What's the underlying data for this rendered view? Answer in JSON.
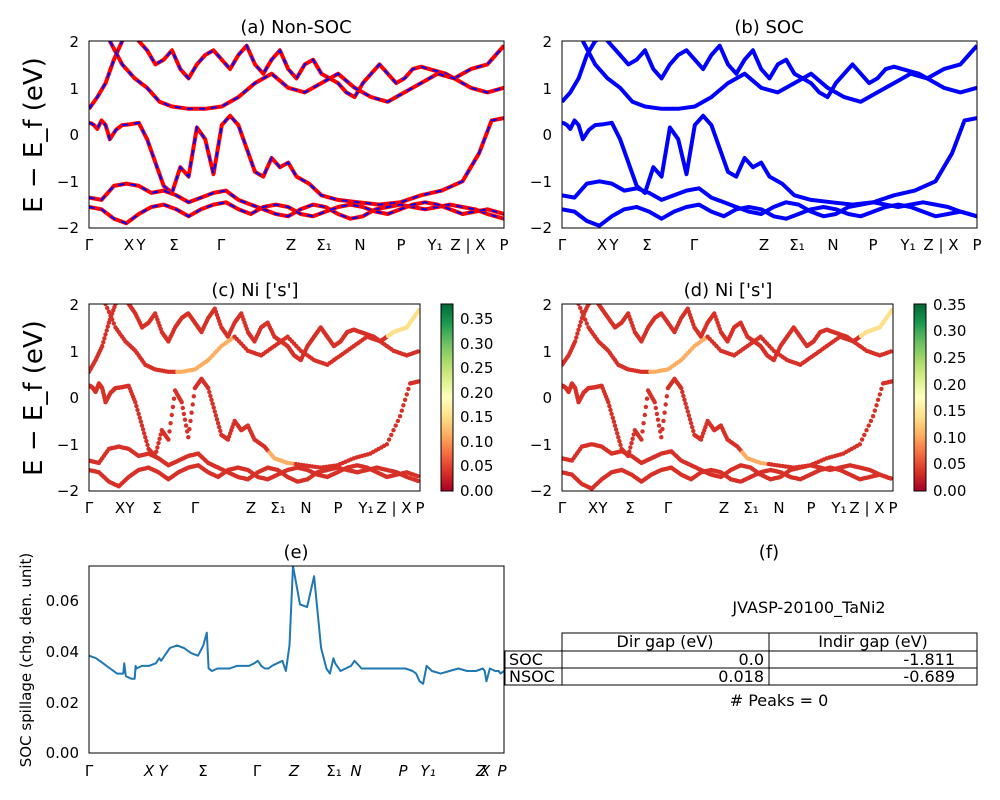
{
  "figure_id": "JVASP-20100_TaNi2",
  "colors": {
    "nonsoc_line": "#ff0000",
    "nonsoc_dash": "#0000ff",
    "soc_line": "#0000ff",
    "spillage_line": "#1f77b4"
  },
  "chart_data": [
    {
      "id": "a",
      "type": "line",
      "title": "(a) Non-SOC",
      "ylabel": "E − E_f (eV)",
      "ylim": [
        -2,
        2
      ],
      "yticks": [
        "2",
        "1",
        "0",
        "−1",
        "−2"
      ],
      "xticks": [
        "Γ",
        "X",
        "Y",
        "Σ",
        "Γ",
        "Z",
        "Σ₁",
        "N",
        "P",
        "Y₁",
        "Z | X",
        "P"
      ],
      "series": [
        {
          "x": [
            0,
            0.05,
            0.12,
            0.2,
            0.3,
            0.4,
            0.5,
            0.65,
            0.8,
            1.0,
            1.2,
            1.4,
            1.6,
            1.8,
            2.0,
            2.2,
            2.4,
            2.6,
            2.8,
            3.0,
            3.2,
            3.4,
            3.6,
            3.8,
            4.0,
            4.2,
            4.4,
            4.6,
            4.8,
            5.0,
            5.3,
            5.6,
            6.0,
            6.5,
            7.0,
            7.5,
            8.0,
            8.5,
            9.0,
            9.4,
            9.7,
            10.0
          ],
          "y": [
            0.25,
            0.24,
            0.2,
            0.12,
            0.3,
            0.2,
            -0.1,
            0.1,
            0.2,
            0.22,
            0.25,
            -0.1,
            -0.6,
            -1.1,
            -1.25,
            -0.7,
            -0.9,
            0.15,
            -0.1,
            -0.85,
            0.2,
            0.4,
            0.2,
            -0.3,
            -0.8,
            -0.9,
            -0.5,
            -0.7,
            -0.6,
            -0.9,
            -1.05,
            -1.3,
            -1.4,
            -1.45,
            -1.5,
            -1.45,
            -1.3,
            -1.2,
            -1.0,
            -0.4,
            0.3,
            0.35
          ]
        },
        {
          "x": [
            0,
            0.2,
            0.4,
            0.6,
            0.8,
            1.0,
            1.2,
            1.4,
            1.6,
            1.8,
            2.0,
            2.2,
            2.4,
            2.6,
            2.8,
            3.0,
            3.2,
            3.4,
            3.6,
            3.8,
            4.0,
            4.2,
            4.4,
            4.6,
            4.8,
            5.0,
            5.2,
            5.4,
            5.6,
            5.8,
            6.0,
            6.2,
            6.4,
            6.6,
            6.8,
            7.0,
            7.2,
            7.4,
            7.6,
            7.8,
            8.0,
            8.2,
            8.4,
            8.6,
            8.8,
            9.0,
            9.2,
            9.4,
            9.6,
            9.8,
            10.0
          ],
          "y": [
            0.55,
            0.8,
            1.1,
            1.6,
            2.0,
            2.2,
            2.0,
            1.8,
            1.5,
            1.6,
            1.8,
            1.4,
            1.2,
            1.5,
            1.7,
            1.8,
            1.6,
            1.4,
            1.7,
            1.9,
            1.5,
            1.3,
            1.6,
            1.8,
            1.4,
            1.2,
            1.5,
            1.6,
            1.3,
            1.2,
            1.1,
            0.9,
            0.8,
            1.1,
            1.3,
            1.5,
            1.3,
            1.1,
            1.2,
            1.4,
            1.45,
            1.4,
            1.35,
            1.3,
            1.2,
            1.3,
            1.4,
            1.45,
            1.5,
            1.7,
            1.9
          ]
        },
        {
          "x": [
            0,
            0.3,
            0.6,
            0.9,
            1.2,
            1.5,
            1.8,
            2.1,
            2.4,
            2.7,
            3.0,
            3.3,
            3.6,
            3.9,
            4.2,
            4.5,
            4.8,
            5.1,
            5.4,
            5.7,
            6.0,
            6.3,
            6.6,
            6.9,
            7.2,
            7.5,
            7.8,
            8.1,
            8.4,
            8.7,
            9.0,
            9.3,
            9.6,
            10.0
          ],
          "y": [
            -1.35,
            -1.4,
            -1.1,
            -1.05,
            -1.1,
            -1.25,
            -1.2,
            -1.3,
            -1.45,
            -1.35,
            -1.25,
            -1.2,
            -1.4,
            -1.5,
            -1.6,
            -1.7,
            -1.75,
            -1.6,
            -1.5,
            -1.55,
            -1.7,
            -1.8,
            -1.75,
            -1.6,
            -1.55,
            -1.5,
            -1.55,
            -1.6,
            -1.55,
            -1.5,
            -1.55,
            -1.6,
            -1.7,
            -1.8
          ]
        },
        {
          "x": [
            0,
            0.3,
            0.6,
            0.9,
            1.2,
            1.5,
            1.8,
            2.1,
            2.4,
            2.7,
            3.0,
            3.3,
            3.6,
            3.9,
            4.2,
            4.5,
            4.8,
            5.1,
            5.4,
            5.7,
            6.0,
            6.3,
            6.6,
            6.9,
            7.2,
            7.5,
            7.8,
            8.1,
            8.4,
            8.7,
            9.0,
            9.3,
            9.6,
            10.0
          ],
          "y": [
            -1.55,
            -1.6,
            -1.8,
            -1.9,
            -1.7,
            -1.55,
            -1.5,
            -1.6,
            -1.75,
            -1.6,
            -1.5,
            -1.45,
            -1.6,
            -1.7,
            -1.55,
            -1.5,
            -1.55,
            -1.7,
            -1.75,
            -1.65,
            -1.55,
            -1.5,
            -1.55,
            -1.65,
            -1.7,
            -1.6,
            -1.5,
            -1.45,
            -1.5,
            -1.6,
            -1.7,
            -1.65,
            -1.6,
            -1.7
          ]
        },
        {
          "x": [
            0.5,
            0.8,
            1.1,
            1.4,
            1.7,
            2.0,
            2.4,
            2.8,
            3.2,
            3.6,
            4.0,
            4.4,
            4.8,
            5.2,
            5.6,
            6.0,
            6.4,
            6.8,
            7.2,
            7.6,
            8.0,
            8.4,
            8.8,
            9.2,
            9.6,
            10.0
          ],
          "y": [
            2.0,
            1.5,
            1.2,
            1.0,
            0.7,
            0.6,
            0.55,
            0.55,
            0.6,
            0.8,
            1.1,
            1.3,
            1.0,
            0.9,
            1.1,
            1.3,
            1.0,
            0.8,
            0.7,
            0.9,
            1.1,
            1.3,
            1.2,
            1.0,
            0.9,
            1.0
          ]
        }
      ]
    },
    {
      "id": "b",
      "type": "line",
      "title": "(b) SOC",
      "ylim": [
        -2,
        2
      ],
      "yticks": [
        "2",
        "1",
        "0",
        "−1",
        "−2"
      ],
      "xticks": [
        "Γ",
        "X",
        "Y",
        "Σ",
        "Γ",
        "Z",
        "Σ₁",
        "N",
        "P",
        "Y₁",
        "Z | X",
        "P"
      ],
      "series": [
        {
          "x": [
            0,
            0.05,
            0.12,
            0.2,
            0.3,
            0.4,
            0.5,
            0.65,
            0.8,
            1.0,
            1.2,
            1.4,
            1.6,
            1.8,
            2.0,
            2.2,
            2.4,
            2.6,
            2.8,
            3.0,
            3.2,
            3.4,
            3.6,
            3.8,
            4.0,
            4.2,
            4.4,
            4.6,
            4.8,
            5.0,
            5.3,
            5.6,
            6.0,
            6.5,
            7.0,
            7.5,
            8.0,
            8.5,
            9.0,
            9.4,
            9.7,
            10.0
          ],
          "y": [
            0.25,
            0.24,
            0.2,
            0.12,
            0.3,
            0.2,
            -0.1,
            0.1,
            0.2,
            0.22,
            0.25,
            -0.1,
            -0.6,
            -1.1,
            -1.25,
            -0.7,
            -0.9,
            0.15,
            -0.1,
            -0.85,
            0.2,
            0.4,
            0.2,
            -0.3,
            -0.8,
            -0.9,
            -0.5,
            -0.7,
            -0.6,
            -0.9,
            -1.05,
            -1.3,
            -1.4,
            -1.45,
            -1.5,
            -1.45,
            -1.3,
            -1.2,
            -1.0,
            -0.4,
            0.3,
            0.35
          ]
        },
        {
          "x": [
            0,
            0.2,
            0.4,
            0.6,
            0.8,
            1.0,
            1.2,
            1.4,
            1.6,
            1.8,
            2.0,
            2.2,
            2.4,
            2.6,
            2.8,
            3.0,
            3.2,
            3.4,
            3.6,
            3.8,
            4.0,
            4.2,
            4.4,
            4.6,
            4.8,
            5.0,
            5.2,
            5.4,
            5.6,
            5.8,
            6.0,
            6.2,
            6.4,
            6.6,
            6.8,
            7.0,
            7.2,
            7.4,
            7.6,
            7.8,
            8.0,
            8.2,
            8.4,
            8.6,
            8.8,
            9.0,
            9.2,
            9.4,
            9.6,
            9.8,
            10.0
          ],
          "y": [
            0.7,
            0.9,
            1.2,
            1.7,
            2.0,
            2.1,
            1.9,
            1.7,
            1.5,
            1.6,
            1.8,
            1.4,
            1.2,
            1.5,
            1.7,
            1.8,
            1.6,
            1.4,
            1.7,
            1.9,
            1.5,
            1.3,
            1.6,
            1.8,
            1.4,
            1.2,
            1.5,
            1.6,
            1.3,
            1.2,
            1.1,
            0.9,
            0.8,
            1.1,
            1.3,
            1.5,
            1.3,
            1.1,
            1.2,
            1.4,
            1.45,
            1.4,
            1.35,
            1.3,
            1.2,
            1.3,
            1.4,
            1.45,
            1.5,
            1.7,
            1.9
          ]
        },
        {
          "x": [
            0,
            0.3,
            0.6,
            0.9,
            1.2,
            1.5,
            1.8,
            2.1,
            2.4,
            2.7,
            3.0,
            3.3,
            3.6,
            3.9,
            4.2,
            4.5,
            4.8,
            5.1,
            5.4,
            5.7,
            6.0,
            6.3,
            6.6,
            6.9,
            7.2,
            7.5,
            7.8,
            8.1,
            8.4,
            8.7,
            9.0,
            9.3,
            9.6,
            10.0
          ],
          "y": [
            -1.3,
            -1.35,
            -1.05,
            -1.0,
            -1.05,
            -1.2,
            -1.15,
            -1.25,
            -1.4,
            -1.3,
            -1.2,
            -1.15,
            -1.35,
            -1.45,
            -1.55,
            -1.65,
            -1.7,
            -1.55,
            -1.45,
            -1.5,
            -1.65,
            -1.75,
            -1.7,
            -1.55,
            -1.5,
            -1.45,
            -1.5,
            -1.55,
            -1.5,
            -1.45,
            -1.5,
            -1.55,
            -1.65,
            -1.75
          ]
        },
        {
          "x": [
            0,
            0.3,
            0.6,
            0.9,
            1.2,
            1.5,
            1.8,
            2.1,
            2.4,
            2.7,
            3.0,
            3.3,
            3.6,
            3.9,
            4.2,
            4.5,
            4.8,
            5.1,
            5.4,
            5.7,
            6.0,
            6.3,
            6.6,
            6.9,
            7.2,
            7.5,
            7.8,
            8.1,
            8.4,
            8.7,
            9.0,
            9.3,
            9.6,
            10.0
          ],
          "y": [
            -1.6,
            -1.65,
            -1.85,
            -1.95,
            -1.75,
            -1.6,
            -1.55,
            -1.65,
            -1.8,
            -1.65,
            -1.55,
            -1.5,
            -1.65,
            -1.75,
            -1.6,
            -1.55,
            -1.6,
            -1.75,
            -1.8,
            -1.7,
            -1.6,
            -1.55,
            -1.6,
            -1.7,
            -1.75,
            -1.65,
            -1.55,
            -1.5,
            -1.55,
            -1.65,
            -1.75,
            -1.7,
            -1.65,
            -1.75
          ]
        },
        {
          "x": [
            0.5,
            0.8,
            1.1,
            1.4,
            1.7,
            2.0,
            2.4,
            2.8,
            3.2,
            3.6,
            4.0,
            4.4,
            4.8,
            5.2,
            5.6,
            6.0,
            6.4,
            6.8,
            7.2,
            7.6,
            8.0,
            8.4,
            8.8,
            9.2,
            9.6,
            10.0
          ],
          "y": [
            2.0,
            1.5,
            1.2,
            1.0,
            0.7,
            0.6,
            0.55,
            0.55,
            0.6,
            0.8,
            1.1,
            1.3,
            1.0,
            0.9,
            1.1,
            1.3,
            1.0,
            0.8,
            0.7,
            0.9,
            1.1,
            1.3,
            1.2,
            1.0,
            0.9,
            1.0
          ]
        }
      ]
    },
    {
      "id": "c",
      "type": "scatter",
      "title": "(c)  Ni ['s']",
      "ylabel": "E − E_f (eV)",
      "ylim": [
        -2,
        2
      ],
      "yticks": [
        "2",
        "1",
        "0",
        "−1",
        "−2"
      ],
      "xticks": [
        "Γ",
        "X",
        "Y",
        "Σ",
        "Γ",
        "Z",
        "Σ₁",
        "N",
        "P",
        "Y₁",
        "Z | X",
        "P"
      ],
      "colorbar_ticks": [
        "0.35",
        "0.30",
        "0.25",
        "0.20",
        "0.15",
        "0.10",
        "0.05",
        "0.00"
      ],
      "colorbar_range": [
        0,
        0.38
      ]
    },
    {
      "id": "d",
      "type": "scatter",
      "title": "(d) Ni ['s']",
      "ylim": [
        -2,
        2
      ],
      "yticks": [
        "2",
        "1",
        "0",
        "−1",
        "−2"
      ],
      "xticks": [
        "Γ",
        "X",
        "Y",
        "Σ",
        "Γ",
        "Z",
        "Σ₁",
        "N",
        "P",
        "Y₁",
        "Z | X",
        "P"
      ],
      "colorbar_ticks": [
        "0.35",
        "0.30",
        "0.25",
        "0.20",
        "0.15",
        "0.10",
        "0.05",
        "0.00"
      ],
      "colorbar_range": [
        0,
        0.35
      ]
    },
    {
      "id": "e",
      "type": "line",
      "title": "(e)",
      "ylabel": "SOC spillage (chg. den. unit)",
      "ylim": [
        0,
        0.073
      ],
      "yticks": [
        "0.06",
        "0.04",
        "0.02",
        "0.00"
      ],
      "xticks": [
        "Γ",
        "X",
        "Y",
        "Σ",
        "Γ",
        "Z",
        "Σ₁",
        "N",
        "P",
        "Y₁",
        "Z",
        "X",
        "P"
      ],
      "x": [
        0,
        0.4,
        0.8,
        1.2,
        1.6,
        1.95,
        2.0,
        2.1,
        2.4,
        2.6,
        2.65,
        2.7,
        3.0,
        3.4,
        3.8,
        4.0,
        4.1,
        4.3,
        4.6,
        5.0,
        5.4,
        5.8,
        6.2,
        6.5,
        6.7,
        6.8,
        7.0,
        7.3,
        7.6,
        8.0,
        8.4,
        8.8,
        9.1,
        9.4,
        9.6,
        9.8,
        10.0,
        10.2,
        10.4,
        10.7,
        11.0,
        11.2,
        11.4,
        11.6,
        12.0,
        12.4,
        12.8,
        13.2,
        13.5,
        13.7,
        13.8,
        13.9,
        14.0,
        14.3,
        14.6,
        14.9,
        15.1,
        15.5,
        16.0,
        16.5,
        17.0,
        17.5,
        18.0,
        18.4,
        18.6,
        18.8,
        19.0,
        19.2,
        19.5,
        20.0,
        20.5,
        21.0,
        21.5,
        22.0,
        22.4,
        22.5,
        22.6,
        22.8,
        23.1,
        23.3,
        23.4,
        23.6
      ],
      "y": [
        0.038,
        0.037,
        0.035,
        0.033,
        0.031,
        0.031,
        0.035,
        0.03,
        0.029,
        0.029,
        0.034,
        0.033,
        0.034,
        0.034,
        0.035,
        0.037,
        0.036,
        0.038,
        0.041,
        0.042,
        0.041,
        0.039,
        0.038,
        0.042,
        0.047,
        0.033,
        0.032,
        0.033,
        0.033,
        0.033,
        0.034,
        0.034,
        0.034,
        0.035,
        0.036,
        0.034,
        0.033,
        0.033,
        0.034,
        0.035,
        0.036,
        0.032,
        0.042,
        0.073,
        0.058,
        0.057,
        0.069,
        0.041,
        0.033,
        0.031,
        0.034,
        0.037,
        0.035,
        0.032,
        0.033,
        0.034,
        0.036,
        0.033,
        0.033,
        0.033,
        0.033,
        0.033,
        0.033,
        0.032,
        0.031,
        0.028,
        0.027,
        0.034,
        0.032,
        0.031,
        0.032,
        0.033,
        0.032,
        0.032,
        0.033,
        0.032,
        0.028,
        0.033,
        0.032,
        0.032,
        0.031,
        0.032
      ]
    }
  ],
  "panel_f": {
    "title": "(f)",
    "material": "JVASP-20100_TaNi2",
    "table": {
      "headers": [
        "",
        "Dir gap (eV)",
        "Indir gap (eV)"
      ],
      "rows": [
        {
          "label": "SOC",
          "dir": "0.0",
          "indir": "-1.811"
        },
        {
          "label": "NSOC",
          "dir": "0.018",
          "indir": "-0.689"
        }
      ]
    },
    "peaks": "# Peaks = 0"
  }
}
